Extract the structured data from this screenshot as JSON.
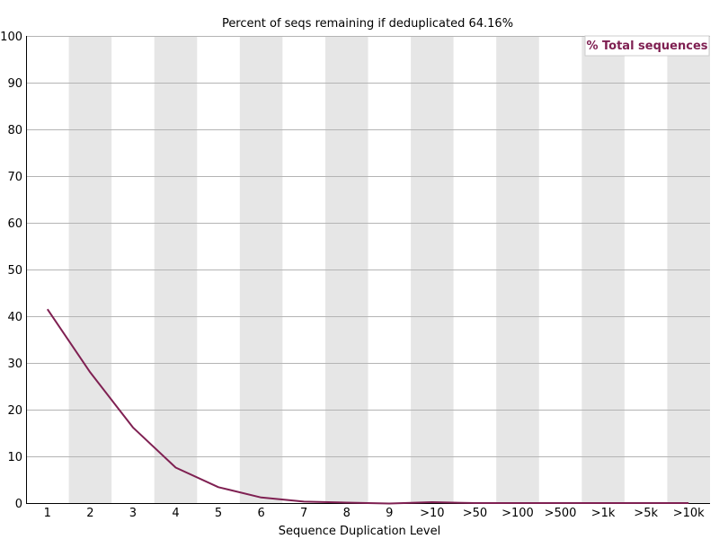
{
  "chart_data": {
    "type": "line",
    "title": "Percent of seqs remaining if deduplicated 64.16%",
    "xlabel": "Sequence Duplication Level",
    "ylabel": "",
    "categories": [
      "1",
      "2",
      "3",
      "4",
      "5",
      "6",
      "7",
      "8",
      "9",
      ">10",
      ">50",
      ">100",
      ">500",
      ">1k",
      ">5k",
      ">10k"
    ],
    "ylim": [
      0,
      100
    ],
    "yticks": [
      0,
      10,
      20,
      30,
      40,
      50,
      60,
      70,
      80,
      90,
      100
    ],
    "series": [
      {
        "name": "% Total sequences",
        "color": "#7f2052",
        "values": [
          41.5,
          28.0,
          16.2,
          7.6,
          3.4,
          1.2,
          0.3,
          0.1,
          -0.1,
          0.2,
          0.0,
          0.0,
          0.0,
          0.0,
          0.0,
          0.0
        ]
      }
    ],
    "grid": true,
    "alternating_bands": true,
    "band_color": "#e6e6e6",
    "gridline_color": "#b4b4b4",
    "legend_position": "top-right"
  }
}
